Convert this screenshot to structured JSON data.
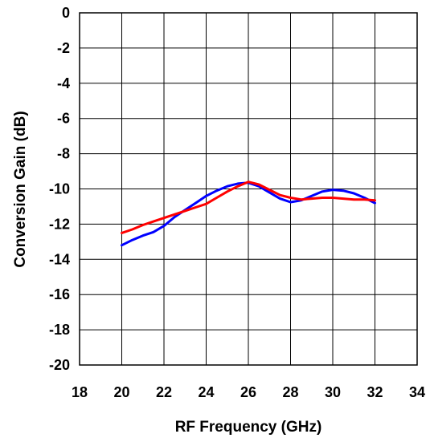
{
  "chart_data": {
    "type": "line",
    "xlabel": "RF Frequency (GHz)",
    "ylabel": "Conversion Gain (dB)",
    "xlim": [
      18,
      34
    ],
    "ylim": [
      -20,
      0
    ],
    "xticks": [
      "18",
      "20",
      "22",
      "24",
      "26",
      "28",
      "30",
      "32",
      "34"
    ],
    "yticks": [
      "0",
      "-2",
      "-4",
      "-6",
      "-8",
      "-10",
      "-12",
      "-14",
      "-16",
      "-18",
      "-20"
    ],
    "grid": true,
    "legend": "none",
    "series": [
      {
        "color": "#0000ff",
        "x": [
          20,
          20.5,
          21,
          21.5,
          22,
          22.5,
          23,
          23.5,
          24,
          24.5,
          25,
          25.5,
          26,
          26.5,
          27,
          27.5,
          28,
          28.5,
          29,
          29.5,
          30,
          30.5,
          31,
          31.5,
          32
        ],
        "y": [
          -13.2,
          -12.9,
          -12.65,
          -12.45,
          -12.1,
          -11.6,
          -11.2,
          -10.8,
          -10.4,
          -10.1,
          -9.85,
          -9.7,
          -9.65,
          -9.85,
          -10.2,
          -10.55,
          -10.75,
          -10.65,
          -10.4,
          -10.15,
          -10.05,
          -10.1,
          -10.25,
          -10.5,
          -10.8
        ]
      },
      {
        "color": "#ff0000",
        "x": [
          20,
          20.5,
          21,
          21.5,
          22,
          22.5,
          23,
          23.5,
          24,
          24.5,
          25,
          25.5,
          26,
          26.5,
          27,
          27.5,
          28,
          28.5,
          29,
          29.5,
          30,
          30.5,
          31,
          31.5,
          32
        ],
        "y": [
          -12.5,
          -12.3,
          -12.05,
          -11.85,
          -11.65,
          -11.45,
          -11.25,
          -11.05,
          -10.85,
          -10.5,
          -10.15,
          -9.85,
          -9.6,
          -9.75,
          -10.05,
          -10.35,
          -10.5,
          -10.6,
          -10.55,
          -10.5,
          -10.5,
          -10.55,
          -10.6,
          -10.6,
          -10.65
        ]
      }
    ]
  }
}
